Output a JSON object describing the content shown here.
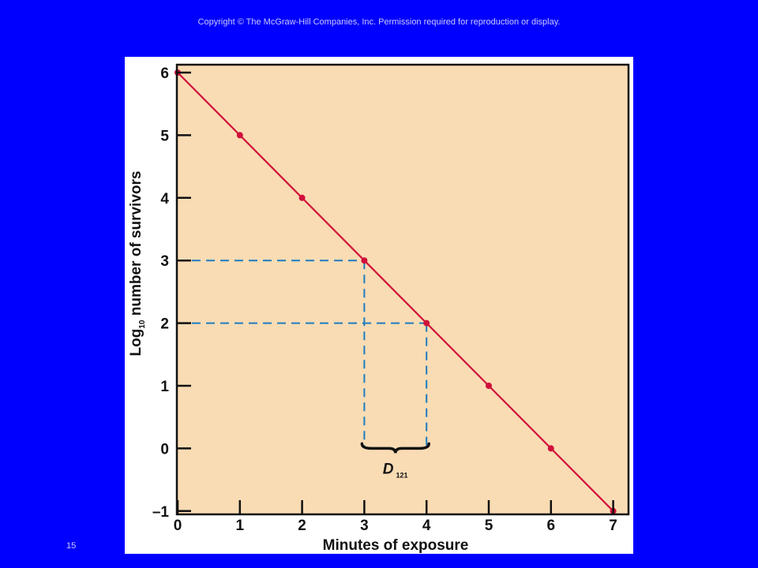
{
  "slide": {
    "copyright": "Copyright © The McGraw-Hill Companies, Inc. Permission required for reproduction or display.",
    "number": "15"
  },
  "colors": {
    "slide_background": "#0000ff",
    "plot_background": "#f9dcb4",
    "line": "#d0103a",
    "guide": "#1e7bbf"
  },
  "chart_data": {
    "type": "line",
    "xlabel": "Minutes of exposure",
    "ylabel_main": "Log",
    "ylabel_sub": "10",
    "ylabel_rest": " number of survivors",
    "xlim": [
      0,
      7
    ],
    "ylim": [
      -1,
      6
    ],
    "x_ticks": [
      0,
      1,
      2,
      3,
      4,
      5,
      6,
      7
    ],
    "y_ticks": [
      6,
      5,
      4,
      3,
      2,
      1,
      0,
      -1
    ],
    "y_tick_labels": [
      "6",
      "5",
      "4",
      "3",
      "2",
      "1",
      "0",
      "–1"
    ],
    "series": [
      {
        "x": [
          0,
          1,
          2,
          3,
          4,
          5,
          6,
          7
        ],
        "y": [
          6,
          5,
          4,
          3,
          2,
          1,
          0,
          -1
        ]
      }
    ],
    "guides": [
      {
        "from": [
          0,
          3
        ],
        "to": [
          3,
          3
        ]
      },
      {
        "from": [
          0,
          2
        ],
        "to": [
          4,
          2
        ]
      },
      {
        "from": [
          3,
          3
        ],
        "to": [
          3,
          0
        ]
      },
      {
        "from": [
          4,
          2
        ],
        "to": [
          4,
          0
        ]
      }
    ],
    "annotation": {
      "label": "D",
      "subscript": "121",
      "x_range": [
        3,
        4
      ]
    }
  }
}
